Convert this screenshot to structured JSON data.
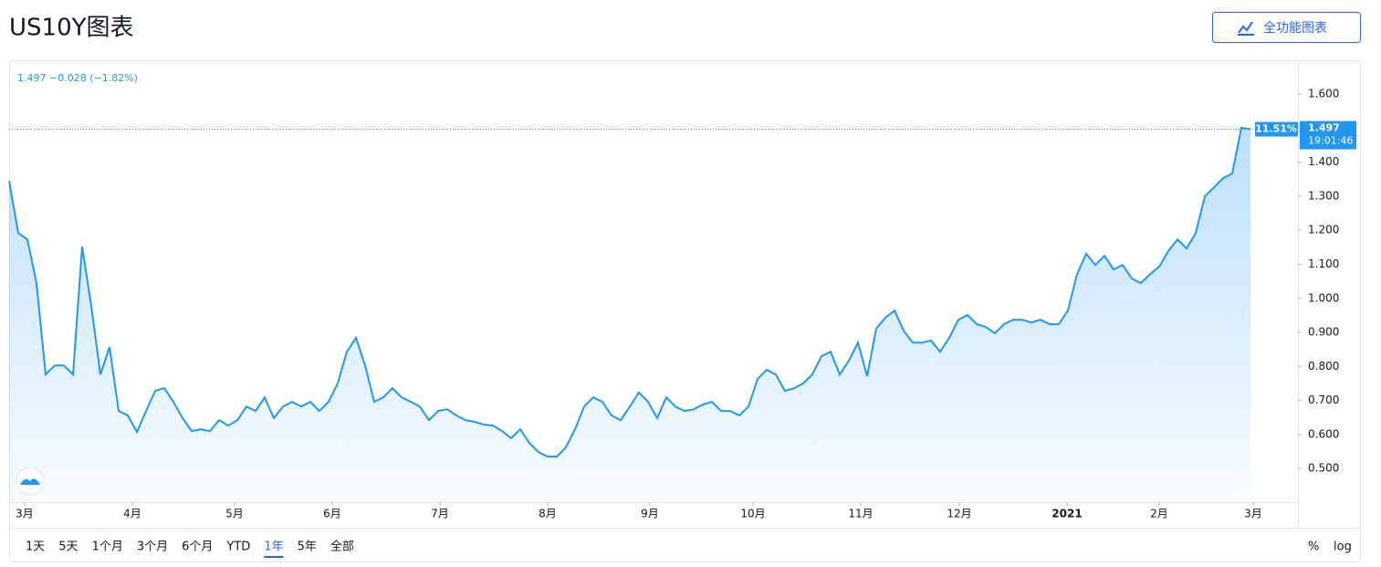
{
  "header": {
    "title": "US10Y图表",
    "button": "全功能图表"
  },
  "chart_data": {
    "type": "area",
    "legend_text": "1.497 −0.028 (−1.82%)",
    "badge_change": "11.51%",
    "badge_price": "1.497",
    "badge_time": "19:01:46",
    "series": [
      {
        "name": "US10Y",
        "color": "#2196f3",
        "values": [
          1.345,
          1.192,
          1.173,
          1.045,
          0.776,
          0.803,
          0.803,
          0.776,
          1.152,
          0.978,
          0.776,
          0.857,
          0.669,
          0.656,
          0.607,
          0.669,
          0.728,
          0.736,
          0.696,
          0.648,
          0.61,
          0.615,
          0.61,
          0.642,
          0.626,
          0.642,
          0.682,
          0.669,
          0.709,
          0.648,
          0.682,
          0.696,
          0.682,
          0.696,
          0.669,
          0.696,
          0.75,
          0.843,
          0.884,
          0.803,
          0.696,
          0.709,
          0.736,
          0.709,
          0.696,
          0.682,
          0.642,
          0.669,
          0.674,
          0.656,
          0.642,
          0.637,
          0.629,
          0.626,
          0.61,
          0.589,
          0.615,
          0.575,
          0.548,
          0.535,
          0.535,
          0.562,
          0.615,
          0.682,
          0.709,
          0.696,
          0.656,
          0.642,
          0.682,
          0.723,
          0.696,
          0.648,
          0.709,
          0.682,
          0.669,
          0.674,
          0.688,
          0.696,
          0.669,
          0.669,
          0.656,
          0.682,
          0.763,
          0.79,
          0.776,
          0.728,
          0.736,
          0.75,
          0.776,
          0.83,
          0.843,
          0.776,
          0.817,
          0.87,
          0.771,
          0.911,
          0.943,
          0.964,
          0.905,
          0.87,
          0.87,
          0.876,
          0.843,
          0.884,
          0.937,
          0.951,
          0.924,
          0.916,
          0.897,
          0.924,
          0.937,
          0.937,
          0.929,
          0.937,
          0.924,
          0.924,
          0.964,
          1.071,
          1.131,
          1.098,
          1.125,
          1.085,
          1.098,
          1.058,
          1.045,
          1.071,
          1.093,
          1.139,
          1.173,
          1.147,
          1.192,
          1.3,
          1.326,
          1.353,
          1.367,
          1.501,
          1.497
        ]
      }
    ],
    "ylim": [
      0.401,
      1.697
    ],
    "yticks": [
      {
        "value": 0.5,
        "label": "0.500"
      },
      {
        "value": 0.6,
        "label": "0.600"
      },
      {
        "value": 0.7,
        "label": "0.700"
      },
      {
        "value": 0.8,
        "label": "0.800"
      },
      {
        "value": 0.9,
        "label": "0.900"
      },
      {
        "value": 1.0,
        "label": "1.000"
      },
      {
        "value": 1.1,
        "label": "1.100"
      },
      {
        "value": 1.2,
        "label": "1.200"
      },
      {
        "value": 1.3,
        "label": "1.300"
      },
      {
        "value": 1.4,
        "label": "1.400"
      },
      {
        "value": 1.5,
        "label": "1.500"
      },
      {
        "value": 1.6,
        "label": "1.600"
      }
    ],
    "xlim": [
      0,
      141.2
    ],
    "xticks": [
      {
        "value": 1.7,
        "label": "3月"
      },
      {
        "value": 13.5,
        "label": "4月"
      },
      {
        "value": 24.7,
        "label": "5月"
      },
      {
        "value": 35.4,
        "label": "6月"
      },
      {
        "value": 47.2,
        "label": "7月"
      },
      {
        "value": 59,
        "label": "8月"
      },
      {
        "value": 70.2,
        "label": "9月"
      },
      {
        "value": 81.5,
        "label": "10月"
      },
      {
        "value": 93.3,
        "label": "11月"
      },
      {
        "value": 104.1,
        "label": "12月"
      },
      {
        "value": 115.9,
        "label": "2021"
      },
      {
        "value": 126,
        "label": "2月"
      },
      {
        "value": 136.3,
        "label": "3月"
      }
    ],
    "ranges": [
      "1天",
      "5天",
      "1个月",
      "3个月",
      "6个月",
      "YTD",
      "1年",
      "5年",
      "全部"
    ],
    "selected_range": 6,
    "scale_buttons": [
      "%",
      "log"
    ]
  }
}
